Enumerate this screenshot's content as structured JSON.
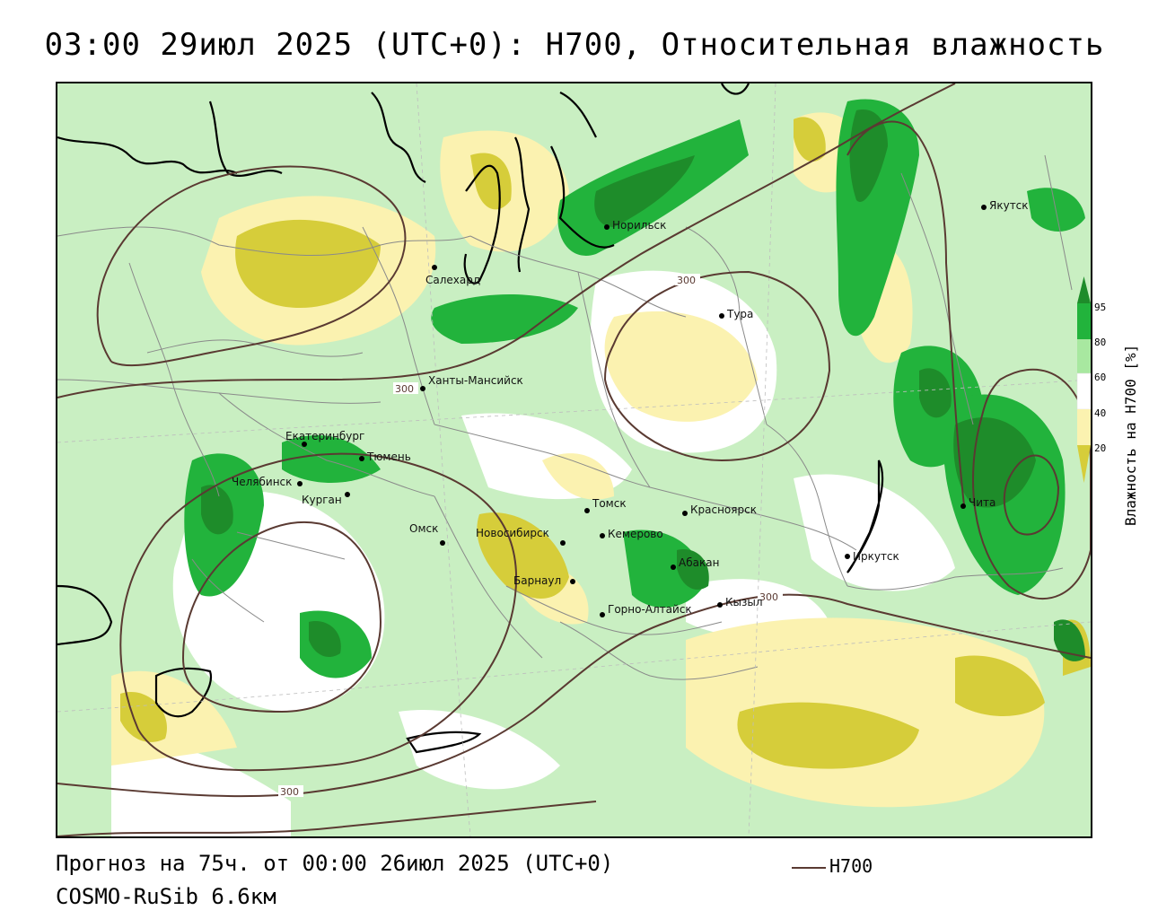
{
  "title": "03:00 29июл 2025 (UTC+0): H700, Относительная влажность",
  "forecast_line": "Прогноз на 75ч. от 00:00 26июл 2025 (UTC+0)",
  "model_line": "COSMO-RuSib 6.6км",
  "contour_key": {
    "label": "H700",
    "color": "#5a3a32"
  },
  "legend": {
    "title": "Влажность на H700 [%]",
    "ticks": [
      "95",
      "80",
      "60",
      "40",
      "20"
    ],
    "colors": {
      "over_95": "#1e8c2a",
      "80_95": "#22b33c",
      "60_80": "#a8e8a0",
      "40_60": "#ffffff",
      "20_40": "#fbf2b0",
      "under_20": "#d6cd3a"
    }
  },
  "contour_labels": [
    "300",
    "300",
    "300",
    "300"
  ],
  "cities": [
    {
      "name": "Норильск"
    },
    {
      "name": "Якутск"
    },
    {
      "name": "Салехард"
    },
    {
      "name": "Тура"
    },
    {
      "name": "Ханты-Мансийск"
    },
    {
      "name": "Екатеринбург"
    },
    {
      "name": "Тюмень"
    },
    {
      "name": "Челябинск"
    },
    {
      "name": "Курган"
    },
    {
      "name": "Омск"
    },
    {
      "name": "Новосибирск"
    },
    {
      "name": "Томск"
    },
    {
      "name": "Красноярск"
    },
    {
      "name": "Кемерово"
    },
    {
      "name": "Абакан"
    },
    {
      "name": "Барнаул"
    },
    {
      "name": "Горно-Алтайск"
    },
    {
      "name": "Кызыл"
    },
    {
      "name": "Иркутск"
    },
    {
      "name": "Чита"
    }
  ]
}
